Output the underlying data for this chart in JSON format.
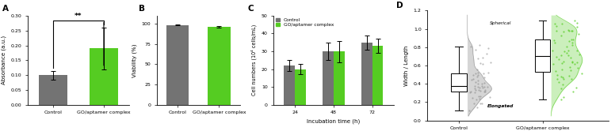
{
  "panel_A": {
    "label": "A",
    "categories": [
      "Control",
      "GO/aptamer complex"
    ],
    "values": [
      0.1,
      0.19
    ],
    "errors": [
      0.015,
      0.07
    ],
    "bar_colors": [
      "#737373",
      "#55cc22"
    ],
    "ylabel": "Absorbance (a.u.)",
    "ylim": [
      0.0,
      0.3
    ],
    "yticks": [
      0.0,
      0.05,
      0.1,
      0.15,
      0.2,
      0.25,
      0.3
    ],
    "ytick_labels": [
      "0.00",
      "0.05",
      "0.10",
      "0.15",
      "0.20",
      "0.25",
      "0.30"
    ],
    "significance": "**"
  },
  "panel_B": {
    "label": "B",
    "categories": [
      "Control",
      "GO/aptamer complex"
    ],
    "values": [
      98.5,
      96.5
    ],
    "errors": [
      0.5,
      0.8
    ],
    "bar_colors": [
      "#737373",
      "#55cc22"
    ],
    "ylabel": "Viability (%)",
    "ylim": [
      0,
      110
    ],
    "yticks": [
      0,
      25,
      50,
      75,
      100
    ],
    "ytick_labels": [
      "0",
      "25",
      "50",
      "75",
      "100"
    ]
  },
  "panel_C": {
    "label": "C",
    "timepoints": [
      24,
      48,
      72
    ],
    "control_values": [
      22,
      30,
      35
    ],
    "treatment_values": [
      20,
      30,
      33
    ],
    "control_errors": [
      3,
      5,
      4
    ],
    "treatment_errors": [
      3,
      6,
      4
    ],
    "bar_colors": [
      "#737373",
      "#55cc22"
    ],
    "ylabel": "Cell numbers (10⁴ cells/mL)",
    "xlabel": "Incubation time (h)",
    "ylim": [
      0,
      50
    ],
    "yticks": [
      0,
      10,
      20,
      30,
      40,
      50
    ],
    "legend_labels": [
      "Control",
      "GO/aptamer complex"
    ]
  },
  "panel_D": {
    "label": "D",
    "ylabel": "Width / Length",
    "ylim": [
      0.0,
      1.2
    ],
    "yticks": [
      0.0,
      0.2,
      0.4,
      0.6,
      0.8,
      1.0,
      1.2
    ],
    "ytick_labels": [
      "0.0",
      "0.2",
      "0.4",
      "0.6",
      "0.8",
      "1.0",
      "1.2"
    ],
    "categories": [
      "Control",
      "GO/aptamer complex"
    ],
    "gray_color": "#888888",
    "green_color": "#55cc22",
    "spherical_label": "Spherical",
    "elongated_label": "Elongated"
  },
  "gray_color": "#737373",
  "green_color": "#55cc22",
  "font_size": 5.0,
  "label_font_size": 7.5
}
